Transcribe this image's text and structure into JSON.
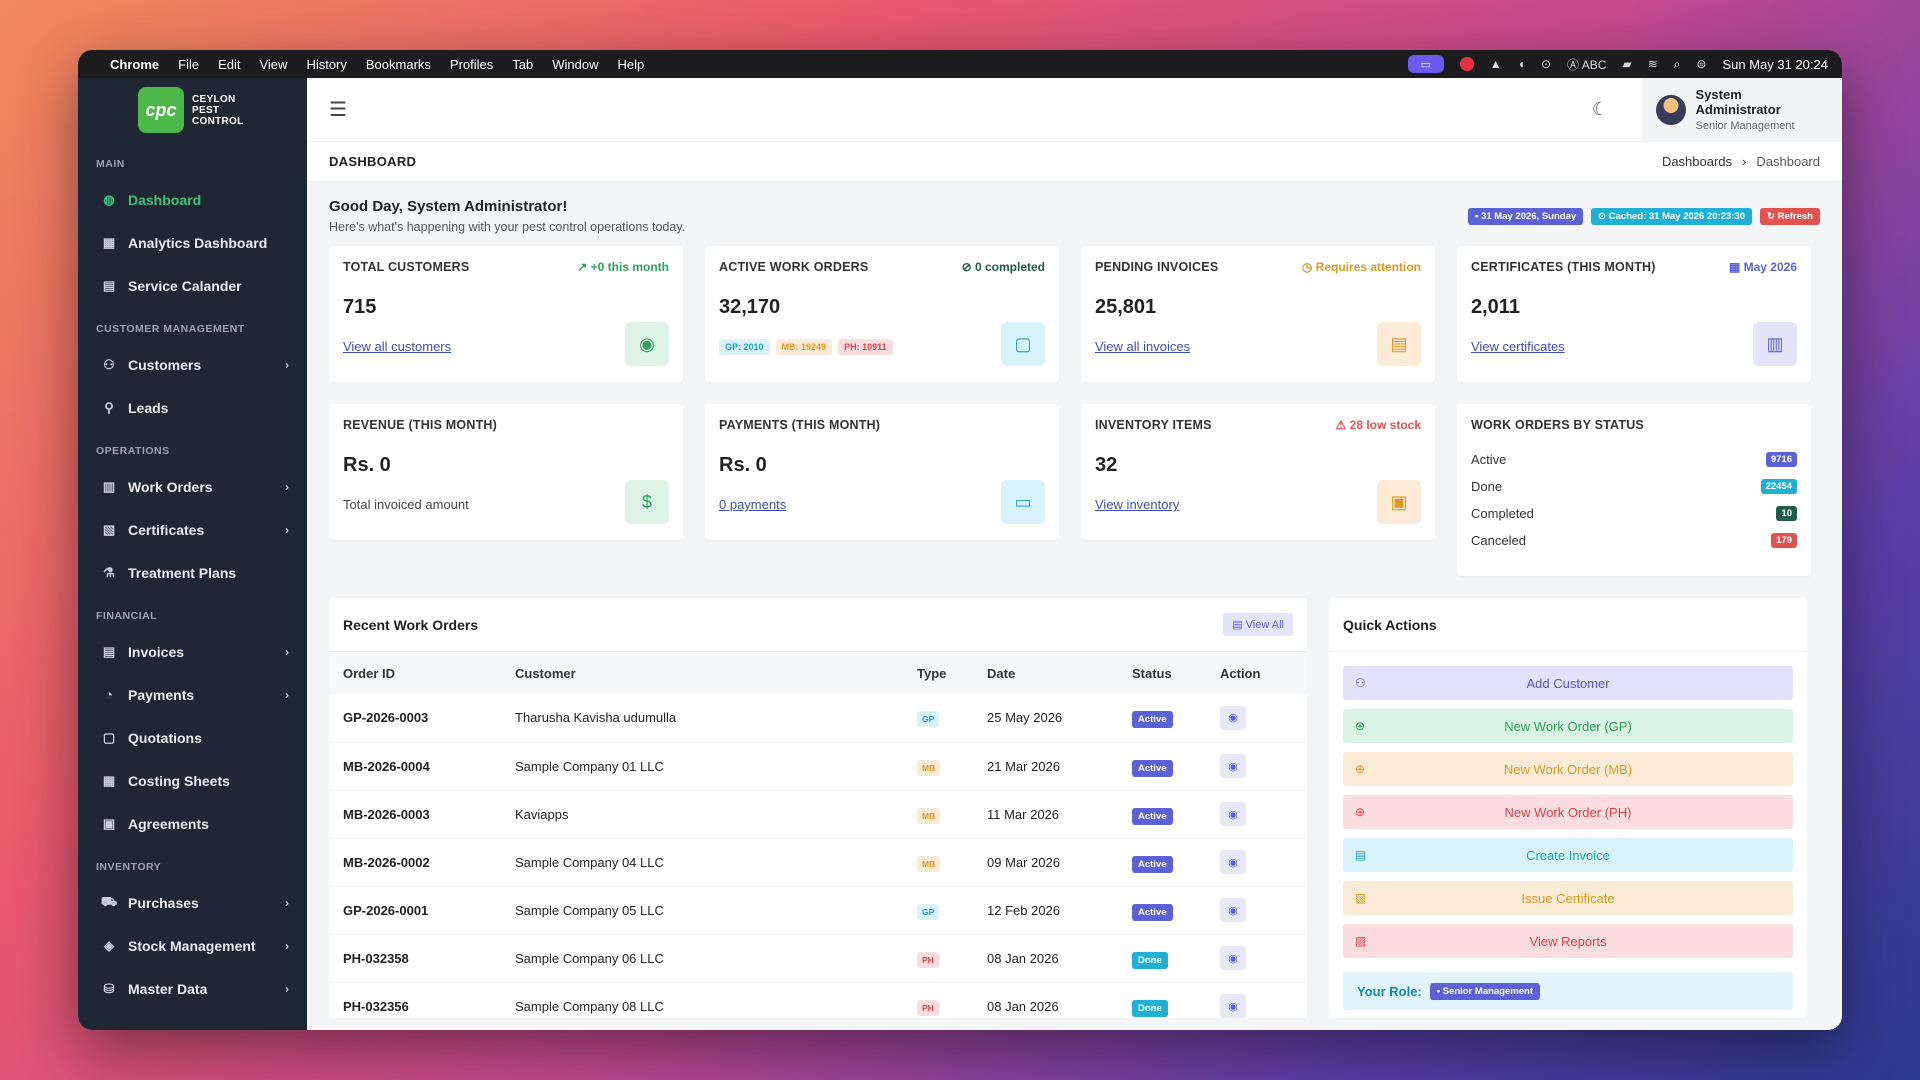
{
  "menubar": {
    "app": "Chrome",
    "items": [
      "File",
      "Edit",
      "View",
      "History",
      "Bookmarks",
      "Profiles",
      "Tab",
      "Window",
      "Help"
    ],
    "input_source": "ABC",
    "clock": "Sun May 31  20:24"
  },
  "brand": {
    "logo_text": "cpc",
    "line1": "CEYLON",
    "line2": "PEST",
    "line3": "CONTROL"
  },
  "sidebar": {
    "sections": [
      {
        "title": "MAIN",
        "items": [
          {
            "label": "Dashboard",
            "icon": "dashboard-icon",
            "active": true,
            "chevron": false
          },
          {
            "label": "Analytics Dashboard",
            "icon": "grid-icon",
            "chevron": false
          },
          {
            "label": "Service Calander",
            "icon": "calendar-icon",
            "chevron": false
          }
        ]
      },
      {
        "title": "CUSTOMER MANAGEMENT",
        "items": [
          {
            "label": "Customers",
            "icon": "user-icon",
            "chevron": true
          },
          {
            "label": "Leads",
            "icon": "user-search-icon",
            "chevron": false
          }
        ]
      },
      {
        "title": "OPERATIONS",
        "items": [
          {
            "label": "Work Orders",
            "icon": "clipboard-icon",
            "chevron": true
          },
          {
            "label": "Certificates",
            "icon": "certificate-icon",
            "chevron": true
          },
          {
            "label": "Treatment Plans",
            "icon": "flask-icon",
            "chevron": false
          }
        ]
      },
      {
        "title": "FINANCIAL",
        "items": [
          {
            "label": "Invoices",
            "icon": "invoice-icon",
            "chevron": true
          },
          {
            "label": "Payments",
            "icon": "payment-icon",
            "chevron": true
          },
          {
            "label": "Quotations",
            "icon": "quote-icon",
            "chevron": false
          },
          {
            "label": "Costing Sheets",
            "icon": "sheet-icon",
            "chevron": false
          },
          {
            "label": "Agreements",
            "icon": "agreement-icon",
            "chevron": false
          }
        ]
      },
      {
        "title": "INVENTORY",
        "items": [
          {
            "label": "Purchases",
            "icon": "cart-icon",
            "chevron": true
          },
          {
            "label": "Stock Management",
            "icon": "layers-icon",
            "chevron": true
          },
          {
            "label": "Master Data",
            "icon": "database-icon",
            "chevron": true
          }
        ]
      }
    ]
  },
  "topbar": {
    "user_name": "System Administrator",
    "user_role": "Senior Management"
  },
  "page": {
    "title": "DASHBOARD",
    "crumb1": "Dashboards",
    "crumb_sep": "›",
    "crumb2": "Dashboard"
  },
  "greeting": {
    "title": "Good Day, System Administrator!",
    "subtitle": "Here's what's happening with your pest control operations today.",
    "date_badge": "• 31 May 2026, Sunday",
    "cache_badge": "⊙ Cached: 31 May 2026 20:23:30",
    "refresh_badge": "↻ Refresh"
  },
  "cards": {
    "customers": {
      "label": "TOTAL CUSTOMERS",
      "note": "↗ +0 this month",
      "value": "715",
      "link": "View all customers",
      "color": "#2e9e5b"
    },
    "workorders": {
      "label": "ACTIVE WORK ORDERS",
      "note": "⊘ 0 completed",
      "value": "32,170",
      "tags": [
        "GP: 2010",
        "MB: 19249",
        "PH: 10911"
      ]
    },
    "invoices": {
      "label": "PENDING INVOICES",
      "note": "◷ Requires attention",
      "value": "25,801",
      "link": "View all invoices",
      "color": "#d99a22"
    },
    "certificates": {
      "label": "CERTIFICATES (THIS MONTH)",
      "note": "▦ May 2026",
      "value": "2,011",
      "link": "View certificates",
      "color": "#5a62d6"
    },
    "revenue": {
      "label": "REVENUE (THIS MONTH)",
      "value": "Rs. 0",
      "plain": "Total invoiced amount"
    },
    "payments": {
      "label": "PAYMENTS (THIS MONTH)",
      "value": "Rs. 0",
      "link": "0 payments"
    },
    "inventory": {
      "label": "INVENTORY ITEMS",
      "note": "⚠ 28 low stock",
      "value": "32",
      "link": "View inventory",
      "color": "#e2524f"
    },
    "status": {
      "label": "WORK ORDERS BY STATUS",
      "rows": [
        {
          "name": "Active",
          "count": "9716",
          "color": "#5a62d6"
        },
        {
          "name": "Done",
          "count": "22454",
          "color": "#1fb0d6"
        },
        {
          "name": "Completed",
          "count": "10",
          "color": "#1f5c4a"
        },
        {
          "name": "Canceled",
          "count": "179",
          "color": "#e2524f"
        }
      ]
    }
  },
  "orders": {
    "title": "Recent Work Orders",
    "view_all": "▤ View All",
    "columns": [
      "Order ID",
      "Customer",
      "Type",
      "Date",
      "Status",
      "Action"
    ],
    "rows": [
      {
        "id": "GP-2026-0003",
        "customer": "Tharusha Kavisha udumulla",
        "type": "GP",
        "date": "25 May 2026",
        "status": "Active"
      },
      {
        "id": "MB-2026-0004",
        "customer": "Sample Company 01 LLC",
        "type": "MB",
        "date": "21 Mar 2026",
        "status": "Active"
      },
      {
        "id": "MB-2026-0003",
        "customer": "Kaviapps",
        "type": "MB",
        "date": "11 Mar 2026",
        "status": "Active"
      },
      {
        "id": "MB-2026-0002",
        "customer": "Sample Company 04 LLC",
        "type": "MB",
        "date": "09 Mar 2026",
        "status": "Active"
      },
      {
        "id": "GP-2026-0001",
        "customer": "Sample Company 05 LLC",
        "type": "GP",
        "date": "12 Feb 2026",
        "status": "Active"
      },
      {
        "id": "PH-032358",
        "customer": "Sample Company 06 LLC",
        "type": "PH",
        "date": "08 Jan 2026",
        "status": "Done"
      },
      {
        "id": "PH-032356",
        "customer": "Sample Company 08 LLC",
        "type": "PH",
        "date": "08 Jan 2026",
        "status": "Done"
      }
    ]
  },
  "quick": {
    "title": "Quick Actions",
    "actions": [
      {
        "label": "Add Customer",
        "icon": "add-user-icon",
        "bg": "#e3e1fb",
        "fg": "#5a52c8"
      },
      {
        "label": "New Work Order (GP)",
        "icon": "plus-circle-icon",
        "bg": "#d9f3e2",
        "fg": "#2e9e5b"
      },
      {
        "label": "New Work Order (MB)",
        "icon": "plus-circle-icon",
        "bg": "#fbead6",
        "fg": "#d99a22"
      },
      {
        "label": "New Work Order (PH)",
        "icon": "plus-circle-icon",
        "bg": "#fbdde0",
        "fg": "#d6424b"
      },
      {
        "label": "Create Invoice",
        "icon": "invoice-icon",
        "bg": "#d8f2fb",
        "fg": "#1fa0c4"
      },
      {
        "label": "Issue Certificate",
        "icon": "certificate-icon",
        "bg": "#fbead6",
        "fg": "#d99a22"
      },
      {
        "label": "View Reports",
        "icon": "report-icon",
        "bg": "#fbdde0",
        "fg": "#d6424b"
      }
    ],
    "role_label": "Your Role:",
    "role_value": "• Senior Management"
  }
}
